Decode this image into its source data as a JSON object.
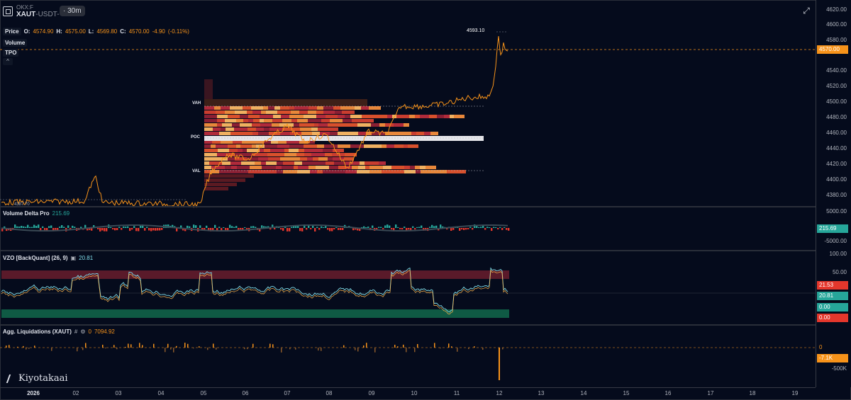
{
  "symbol": {
    "exchange": "OKX:F",
    "base": "XAUT",
    "suffix": "-USDT-",
    "dot": "·",
    "timeframe": "30m"
  },
  "price_legend": {
    "label": "Price",
    "o_key": "O:",
    "o_val": "4574.90",
    "h_key": "H:",
    "h_val": "4575.00",
    "l_key": "L:",
    "l_val": "4569.80",
    "c_key": "C:",
    "c_val": "4570.00",
    "change": "-4.90",
    "change_pct": "(-0.11%)"
  },
  "overlays": [
    "Volume",
    "TPO"
  ],
  "collapse_glyph": "^",
  "tpo_labels": {
    "vah": "VAH",
    "poc": "POC",
    "val": "VAL"
  },
  "peak_label": "4593.10",
  "low_label": "4387.70",
  "price_axis": {
    "ticks": [
      "4620.00",
      "4600.00",
      "4580.00",
      "4560.00",
      "4540.00",
      "4520.00",
      "4500.00",
      "4480.00",
      "4460.00",
      "4440.00",
      "4420.00",
      "4400.00",
      "4380.00"
    ],
    "current": "4570.00"
  },
  "vdp": {
    "name": "Volume Delta Pro",
    "value": "215.69",
    "ticks": [
      "5000.00",
      "-5000.00"
    ],
    "tag": "215.69"
  },
  "vzo": {
    "name": "VZO [BackQuant] (26, 9)",
    "value": "20.81",
    "ticks": [
      "100.00",
      "50.00"
    ],
    "tags": [
      "21.53",
      "20.81",
      "0.00",
      "0.00"
    ]
  },
  "liq": {
    "name": "Agg. Liquidations (XAUT)",
    "glyphs": [
      "#",
      "⚙"
    ],
    "value_prefix": "0",
    "value": "7094.92",
    "ticks": [
      "-500K"
    ],
    "tags": [
      "0",
      "-7.1K"
    ]
  },
  "time_axis": [
    "2026",
    "02",
    "03",
    "04",
    "05",
    "06",
    "07",
    "08",
    "09",
    "10",
    "11",
    "12",
    "13",
    "14",
    "15",
    "16",
    "17",
    "18",
    "19"
  ],
  "watermark": "Kiyotakaai",
  "colors": {
    "bg": "#050b1c",
    "price_line": "#f7931a",
    "vdp_pos": "#26a69a",
    "vdp_neg": "#e5372c",
    "vzo_fast": "#80deea",
    "vzo_slow": "#ffb74d",
    "ob_zone": "#5a1a2a",
    "os_zone": "#0f5a44"
  }
}
